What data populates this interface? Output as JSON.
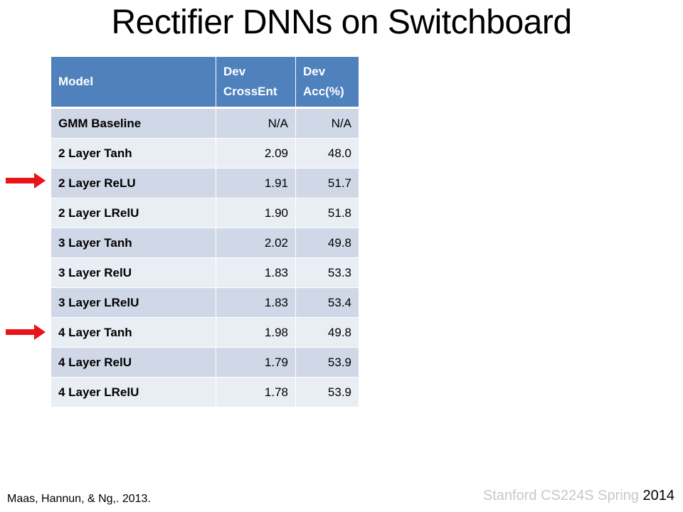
{
  "slide": {
    "title": "Rectifier DNNs on Switchboard",
    "citation": "Maas, Hannun, & Ng,. 2013.",
    "footer_faded": "Stanford CS224S Spring ",
    "footer_year": "2014"
  },
  "table": {
    "headers": {
      "model": "Model",
      "dev_crossent_1": "Dev",
      "dev_crossent_2": "CrossEnt",
      "dev_acc_1": "Dev",
      "dev_acc_2": "Acc(%)"
    },
    "rows": [
      {
        "model": "GMM Baseline",
        "crossent": "N/A",
        "acc": "N/A"
      },
      {
        "model": "2 Layer Tanh",
        "crossent": "2.09",
        "acc": "48.0"
      },
      {
        "model": "2 Layer ReLU",
        "crossent": "1.91",
        "acc": "51.7"
      },
      {
        "model": "2 Layer LRelU",
        "crossent": "1.90",
        "acc": "51.8"
      },
      {
        "model": "3 Layer Tanh",
        "crossent": "2.02",
        "acc": "49.8"
      },
      {
        "model": "3 Layer RelU",
        "crossent": "1.83",
        "acc": "53.3"
      },
      {
        "model": "3 Layer LRelU",
        "crossent": "1.83",
        "acc": "53.4"
      },
      {
        "model": "4 Layer Tanh",
        "crossent": "1.98",
        "acc": "49.8"
      },
      {
        "model": "4 Layer RelU",
        "crossent": "1.79",
        "acc": "53.9"
      },
      {
        "model": "4 Layer LRelU",
        "crossent": "1.78",
        "acc": "53.9"
      }
    ]
  },
  "colors": {
    "header_bg": "#4f81bd",
    "row_odd": "#d0d8e8",
    "row_even": "#e9edf4",
    "arrow": "#e8141a"
  },
  "arrows": {
    "icon": "right-arrow-icon",
    "marked_rows": [
      "2 Layer ReLU",
      "4 Layer Tanh"
    ]
  }
}
